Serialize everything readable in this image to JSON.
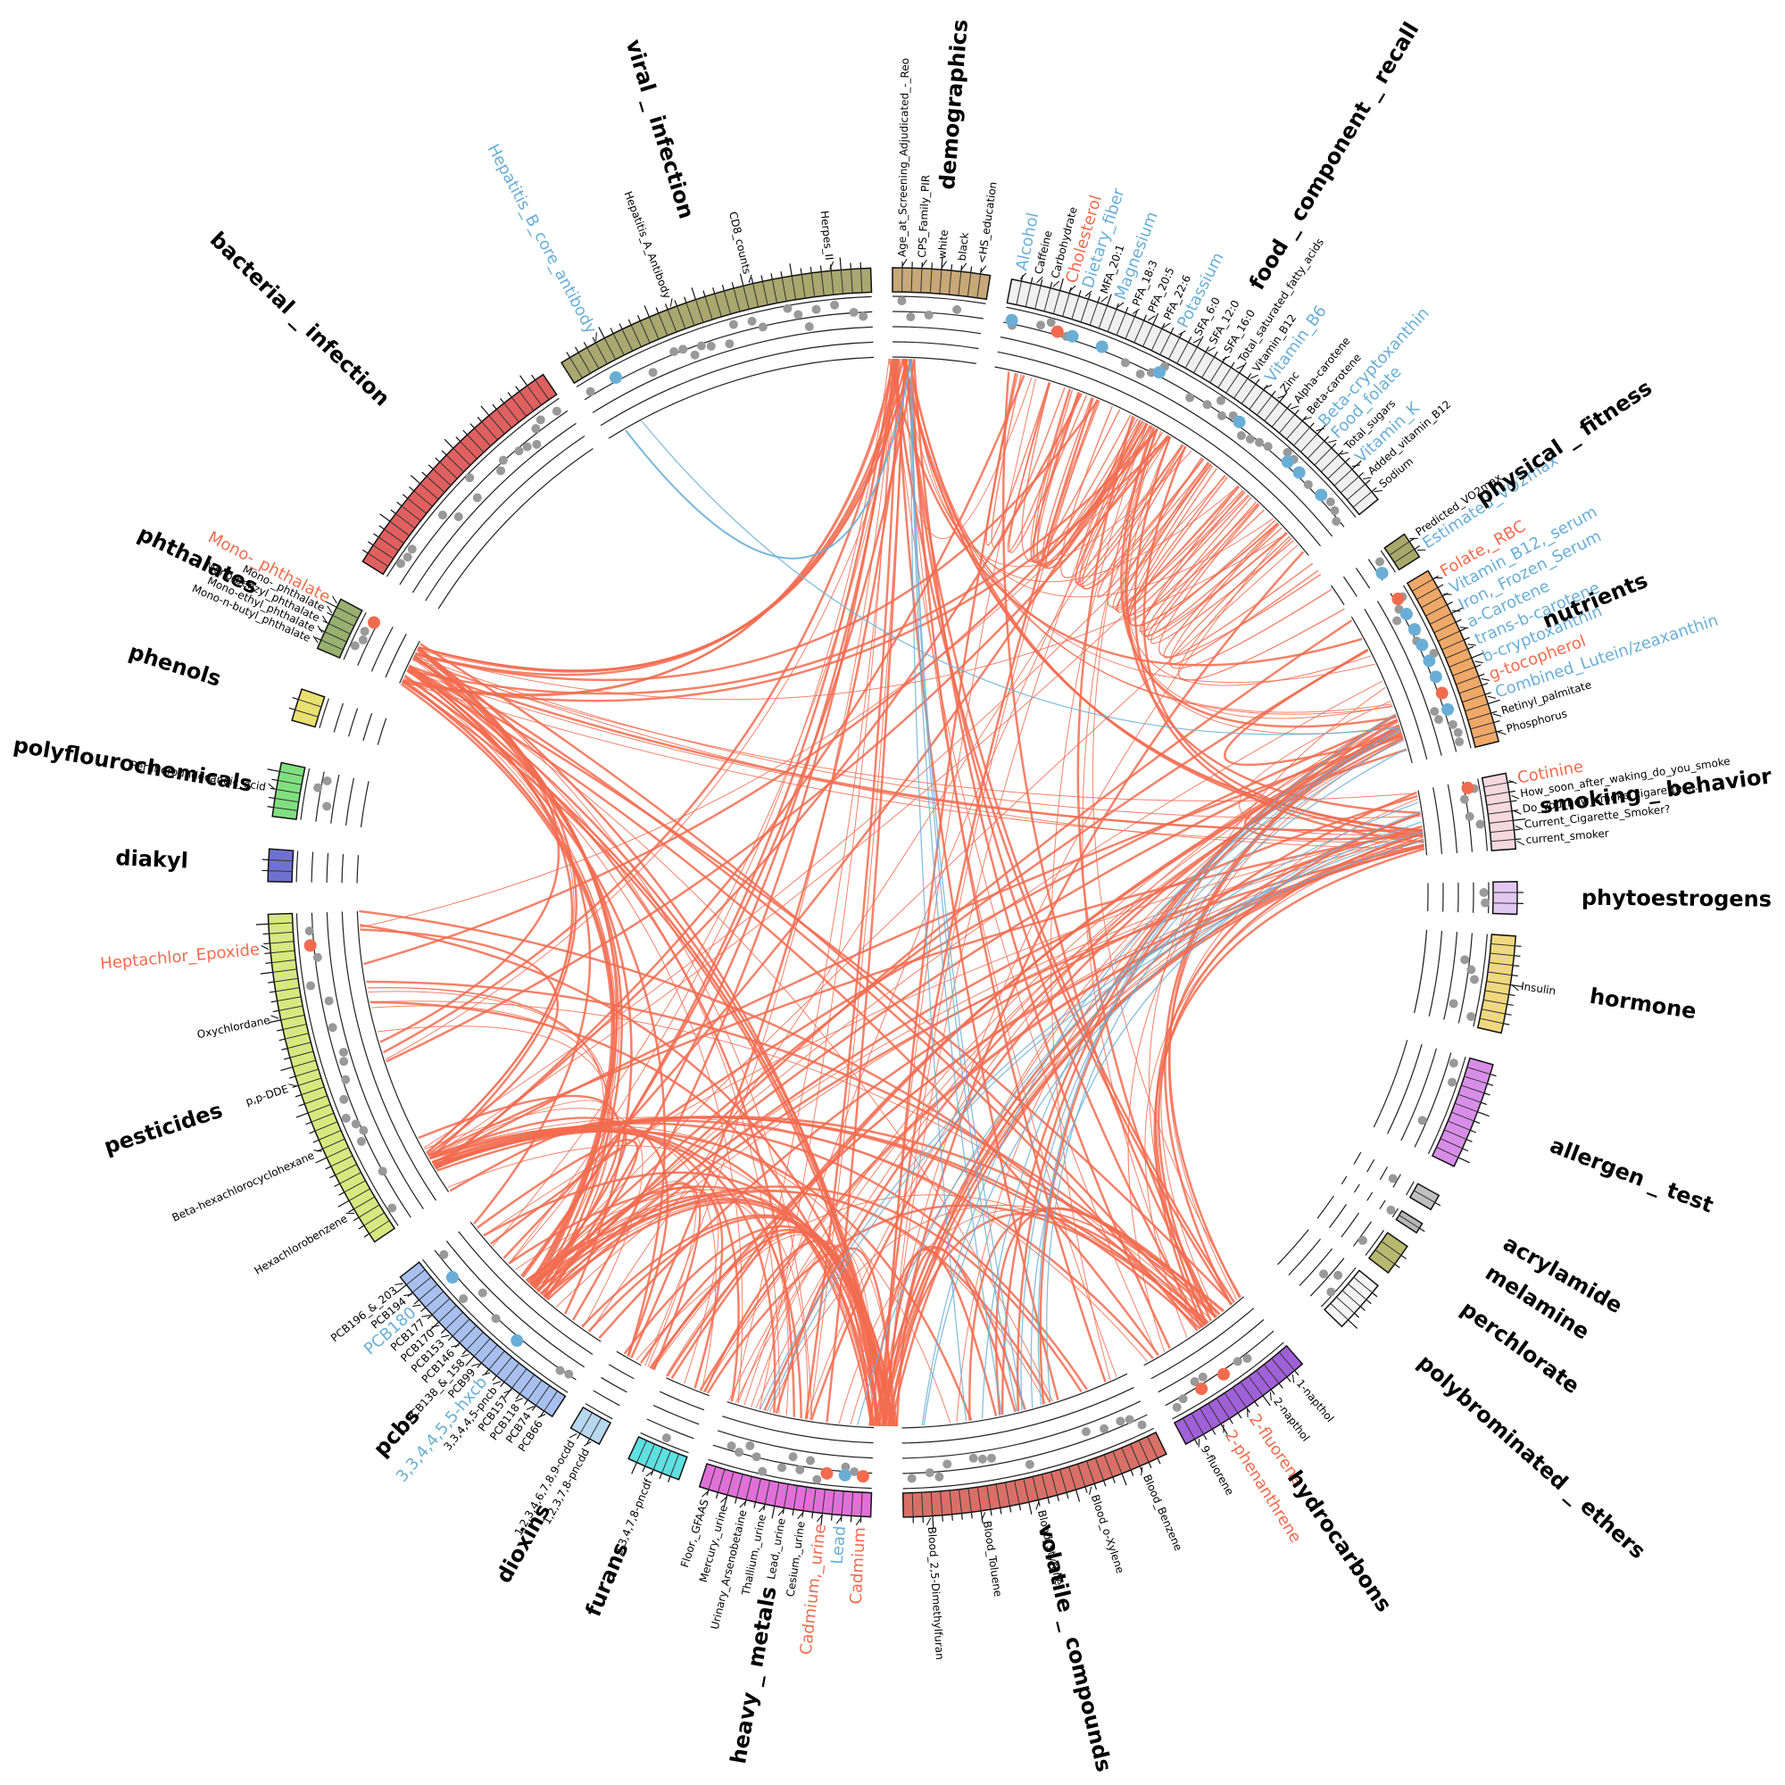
{
  "groups": [
    {
      "name": "demographics",
      "color": "#c8a878",
      "labels": [
        {
          "text": "Age_at_Screening_Adjudicated_-_Reo",
          "color": "#000000"
        },
        {
          "text": "CPS_Family_PIR",
          "color": "#000000"
        },
        {
          "text": "white",
          "color": "#000000"
        },
        {
          "text": "black",
          "color": "#000000"
        },
        {
          "text": "<HS_education",
          "color": "#000000"
        }
      ]
    },
    {
      "name": "food _ component _ recall",
      "color": "#f0f0f0",
      "labels": [
        {
          "text": "Alcohol",
          "color": "#6aaed6"
        },
        {
          "text": "Caffeine",
          "color": "#000000"
        },
        {
          "text": "Carbohydrate",
          "color": "#000000"
        },
        {
          "text": "Cholesterol",
          "color": "#f26b4f"
        },
        {
          "text": "Dietary_fiber",
          "color": "#6aaed6"
        },
        {
          "text": "MFA_20:1",
          "color": "#000000"
        },
        {
          "text": "Magnesium",
          "color": "#6aaed6"
        },
        {
          "text": "PFA_18:3",
          "color": "#000000"
        },
        {
          "text": "PFA_20:5",
          "color": "#000000"
        },
        {
          "text": "PFA_22:6",
          "color": "#000000"
        },
        {
          "text": "Potassium",
          "color": "#6aaed6"
        },
        {
          "text": "SFA_6:0",
          "color": "#000000"
        },
        {
          "text": "SFA_12:0",
          "color": "#000000"
        },
        {
          "text": "SFA_16:0",
          "color": "#000000"
        },
        {
          "text": "Total_saturated_fatty_acids",
          "color": "#000000"
        },
        {
          "text": "Vitamin_B12",
          "color": "#000000"
        },
        {
          "text": "Vitamin_B6",
          "color": "#6aaed6"
        },
        {
          "text": "Zinc",
          "color": "#000000"
        },
        {
          "text": "Alpha-carotene",
          "color": "#000000"
        },
        {
          "text": "Beta-carotene",
          "color": "#000000"
        },
        {
          "text": "Beta-cryptoxanthin",
          "color": "#6aaed6"
        },
        {
          "text": "Food_folate",
          "color": "#6aaed6"
        },
        {
          "text": "Total_sugars",
          "color": "#000000"
        },
        {
          "text": "Vitamin_K",
          "color": "#6aaed6"
        },
        {
          "text": "Added_vitamin_B12",
          "color": "#000000"
        },
        {
          "text": "Sodium",
          "color": "#000000"
        }
      ]
    },
    {
      "name": "physical _ fitness",
      "color": "#a9a86b",
      "labels": [
        {
          "text": "Predicted_VO2max",
          "color": "#000000"
        },
        {
          "text": "Estimated_VO2max",
          "color": "#6aaed6"
        }
      ]
    },
    {
      "name": "nutrients",
      "color": "#f0a868",
      "labels": [
        {
          "text": "Folate,_RBC",
          "color": "#f26b4f"
        },
        {
          "text": "Vitamin_B12,_serum",
          "color": "#6aaed6"
        },
        {
          "text": "Iron,_Frozen_Serum",
          "color": "#6aaed6"
        },
        {
          "text": "a-Carotene",
          "color": "#6aaed6"
        },
        {
          "text": "trans-b-carotene",
          "color": "#6aaed6"
        },
        {
          "text": "b-cryptoxanthin",
          "color": "#6aaed6"
        },
        {
          "text": "g-tocopherol",
          "color": "#f26b4f"
        },
        {
          "text": "Combined_Lutein/zeaxanthin",
          "color": "#6aaed6"
        },
        {
          "text": "Retinyl_palmitate",
          "color": "#000000"
        },
        {
          "text": "Phosphorus",
          "color": "#000000"
        }
      ]
    },
    {
      "name": "smoking _ behavior",
      "color": "#f5d8e0",
      "labels": [
        {
          "text": "Cotinine",
          "color": "#f26b4f"
        },
        {
          "text": "How_soon_after_waking_do_you_smoke",
          "color": "#000000"
        },
        {
          "text": "Do_you_now_smoke_cigarettes...",
          "color": "#000000"
        },
        {
          "text": "Current_Cigarette_Smoker?",
          "color": "#000000"
        },
        {
          "text": "current_smoker",
          "color": "#000000"
        }
      ]
    },
    {
      "name": "phytoestrogens",
      "color": "#e0c8f0",
      "labels": []
    },
    {
      "name": "hormone",
      "color": "#f0d880",
      "labels": [
        {
          "text": "Insulin",
          "color": "#000000"
        }
      ]
    },
    {
      "name": "allergen _ test",
      "color": "#d88ee8",
      "labels": []
    },
    {
      "name": "acrylamide",
      "color": "#c0c0c0",
      "labels": []
    },
    {
      "name": "melamine",
      "color": "#b8b8b8",
      "labels": []
    },
    {
      "name": "perchlorate",
      "color": "#b8b870",
      "labels": []
    },
    {
      "name": "polybrominated _ ethers",
      "color": "#f4f4f4",
      "labels": []
    },
    {
      "name": "hydrocarbons",
      "color": "#a060d8",
      "labels": [
        {
          "text": "1-napthol",
          "color": "#000000"
        },
        {
          "text": "2-napthol",
          "color": "#000000"
        },
        {
          "text": "2-fluorene",
          "color": "#f26b4f"
        },
        {
          "text": "2-phenanthrene",
          "color": "#f26b4f"
        },
        {
          "text": "9-fluorene",
          "color": "#000000"
        }
      ]
    },
    {
      "name": "volatile _ compounds",
      "color": "#d87068",
      "labels": [
        {
          "text": "Blood_Benzene",
          "color": "#000000"
        },
        {
          "text": "Blood_o-Xylene",
          "color": "#000000"
        },
        {
          "text": "Blood_Styrene",
          "color": "#000000"
        },
        {
          "text": "Blood_Toluene",
          "color": "#000000"
        },
        {
          "text": "Blood_2,5-Dimethylfuran",
          "color": "#000000"
        }
      ]
    },
    {
      "name": "heavy _ metals",
      "color": "#e070d8",
      "labels": [
        {
          "text": "Cadmium",
          "color": "#f26b4f"
        },
        {
          "text": "Lead",
          "color": "#6aaed6"
        },
        {
          "text": "Cadmium,_urine",
          "color": "#f26b4f"
        },
        {
          "text": "Cesium,_urine",
          "color": "#000000"
        },
        {
          "text": "Lead,_urine",
          "color": "#000000"
        },
        {
          "text": "Thallium,_urine",
          "color": "#000000"
        },
        {
          "text": "Urinary_Arsenobetaine",
          "color": "#000000"
        },
        {
          "text": "Mercury,_urine",
          "color": "#000000"
        },
        {
          "text": "Floor,_GFAAS",
          "color": "#000000"
        }
      ]
    },
    {
      "name": "furans",
      "color": "#60e0e0",
      "labels": [
        {
          "text": "2,3,4,7,8-pncdf",
          "color": "#000000"
        }
      ]
    },
    {
      "name": "dioxins",
      "color": "#b8d8f0",
      "labels": [
        {
          "text": "1,2,3,7,8-pncdd",
          "color": "#000000"
        },
        {
          "text": "1,2,3,4,6,7,8,9-ocdd",
          "color": "#000000"
        }
      ]
    },
    {
      "name": "pcbs",
      "color": "#a8c0f0",
      "labels": [
        {
          "text": "PCB66",
          "color": "#000000"
        },
        {
          "text": "PCB74",
          "color": "#000000"
        },
        {
          "text": "PCB118",
          "color": "#000000"
        },
        {
          "text": "PCB157",
          "color": "#000000"
        },
        {
          "text": "3,3,4,4,5-pncb",
          "color": "#000000"
        },
        {
          "text": "3,3,4,4,5,5-hxcb",
          "color": "#6aaed6"
        },
        {
          "text": "PCB99",
          "color": "#000000"
        },
        {
          "text": "PCB138_&_158",
          "color": "#000000"
        },
        {
          "text": "PCB146",
          "color": "#000000"
        },
        {
          "text": "PCB153",
          "color": "#000000"
        },
        {
          "text": "PCB170",
          "color": "#000000"
        },
        {
          "text": "PCB177",
          "color": "#000000"
        },
        {
          "text": "PCB180",
          "color": "#6aaed6"
        },
        {
          "text": "PCB194",
          "color": "#000000"
        },
        {
          "text": "PCB196_&_203",
          "color": "#000000"
        }
      ]
    },
    {
      "name": "pesticides",
      "color": "#d8e880",
      "labels": [
        {
          "text": "Hexachlorobenzene",
          "color": "#000000"
        },
        {
          "text": "Beta-hexachlorocyclohexane",
          "color": "#000000"
        },
        {
          "text": "p,p-DDE",
          "color": "#000000"
        },
        {
          "text": "Oxychlordane",
          "color": "#000000"
        },
        {
          "text": "Heptachlor_Epoxide",
          "color": "#f26b4f"
        }
      ]
    },
    {
      "name": "diakyl",
      "color": "#7070d0",
      "labels": []
    },
    {
      "name": "polyflourochemicals",
      "color": "#80e080",
      "labels": [
        {
          "text": "Perfluoroundecanoic_acid",
          "color": "#000000"
        }
      ]
    },
    {
      "name": "phenols",
      "color": "#e8e070",
      "labels": []
    },
    {
      "name": "phthalates",
      "color": "#98b070",
      "labels": [
        {
          "text": "Mono-n-butyl_phthalate",
          "color": "#000000"
        },
        {
          "text": "Mono-ethyl_phthalate",
          "color": "#000000"
        },
        {
          "text": "Mono-benzyl_phthalate",
          "color": "#000000"
        },
        {
          "text": "Mono-_phthalate",
          "color": "#000000"
        },
        {
          "text": "Mono-_phthalate",
          "color": "#f26b4f"
        }
      ]
    },
    {
      "name": "bacterial _ infection",
      "color": "#e06060",
      "labels": []
    },
    {
      "name": "viral _ infection",
      "color": "#a8a870",
      "labels": [
        {
          "text": "Hepatitis_B_core_antibody",
          "color": "#6aaed6"
        },
        {
          "text": "Hepatitis_A_Antibody",
          "color": "#000000"
        },
        {
          "text": "CD8_counts",
          "color": "#000000"
        },
        {
          "text": "Herpes_II",
          "color": "#000000"
        }
      ]
    }
  ]
}
